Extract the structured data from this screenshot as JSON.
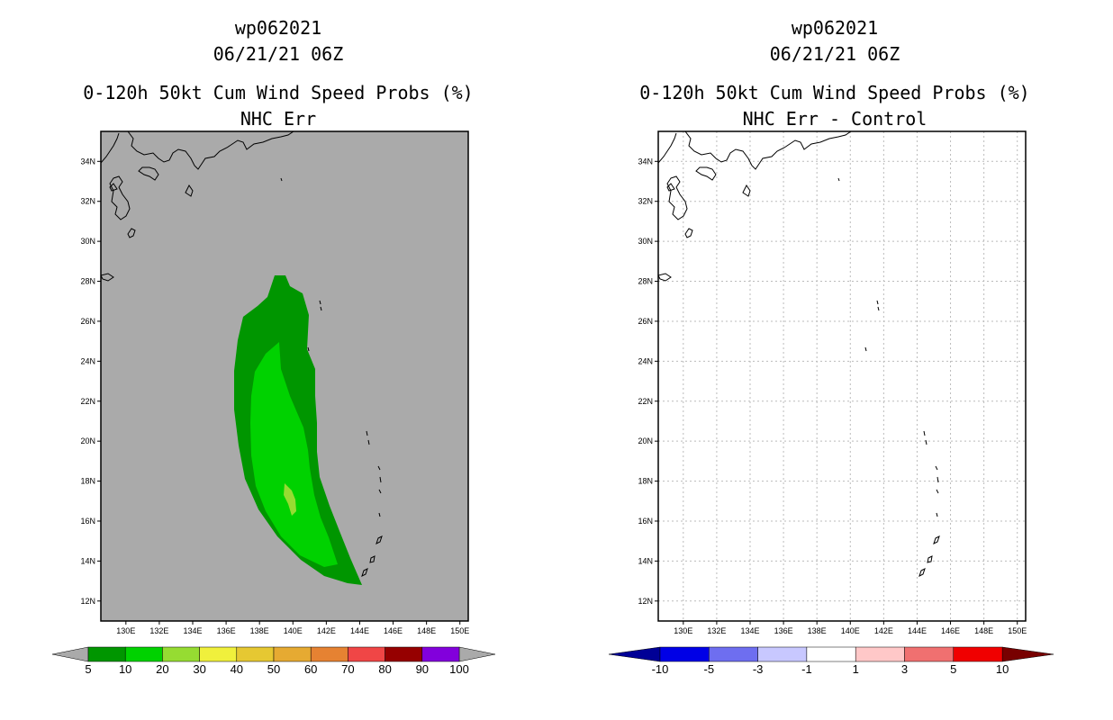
{
  "chart_data": [
    {
      "type": "map",
      "storm_id": "wp062021",
      "datetime": "06/21/21 06Z",
      "title": "0-120h 50kt Cum Wind Speed Probs (%)",
      "subtitle": "NHC Err",
      "lon_range": [
        128.5,
        150.5
      ],
      "lat_range": [
        11,
        35.5
      ],
      "lon_ticks": [
        "130E",
        "132E",
        "134E",
        "136E",
        "138E",
        "140E",
        "142E",
        "144E",
        "146E",
        "148E",
        "150E"
      ],
      "lat_ticks": [
        "12N",
        "14N",
        "16N",
        "18N",
        "20N",
        "22N",
        "24N",
        "26N",
        "28N",
        "30N",
        "32N",
        "34N"
      ],
      "background": "#aaaaaa",
      "colorbar": {
        "labels": [
          "5",
          "10",
          "20",
          "30",
          "40",
          "50",
          "60",
          "70",
          "80",
          "90",
          "100"
        ],
        "colors": [
          "#009600",
          "#00d200",
          "#96dc32",
          "#f0f03c",
          "#e6c832",
          "#e6aa32",
          "#e68232",
          "#f04646",
          "#960000",
          "#8200dc"
        ]
      },
      "contours": [
        {
          "level": "5-10",
          "color": "#009600"
        },
        {
          "level": "10-20",
          "color": "#00d200"
        },
        {
          "level": "20-30",
          "color": "#96dc32"
        }
      ]
    },
    {
      "type": "map",
      "storm_id": "wp062021",
      "datetime": "06/21/21 06Z",
      "title": "0-120h 50kt Cum Wind Speed Probs (%)",
      "subtitle": "NHC Err - Control",
      "lon_range": [
        128.5,
        150.5
      ],
      "lat_range": [
        11,
        35.5
      ],
      "lon_ticks": [
        "130E",
        "132E",
        "134E",
        "136E",
        "138E",
        "140E",
        "142E",
        "144E",
        "146E",
        "148E",
        "150E"
      ],
      "lat_ticks": [
        "12N",
        "14N",
        "16N",
        "18N",
        "20N",
        "22N",
        "24N",
        "26N",
        "28N",
        "30N",
        "32N",
        "34N"
      ],
      "background": "#ffffff",
      "grid": true,
      "colorbar": {
        "labels": [
          "-10",
          "-5",
          "-3",
          "-1",
          "1",
          "3",
          "5",
          "10"
        ],
        "colors": [
          "#0000e6",
          "#6e6ef0",
          "#c8c8ff",
          "#ffffff",
          "#ffc8c8",
          "#f07070",
          "#f00000"
        ],
        "low_color": "#000096",
        "high_color": "#780000"
      }
    }
  ]
}
